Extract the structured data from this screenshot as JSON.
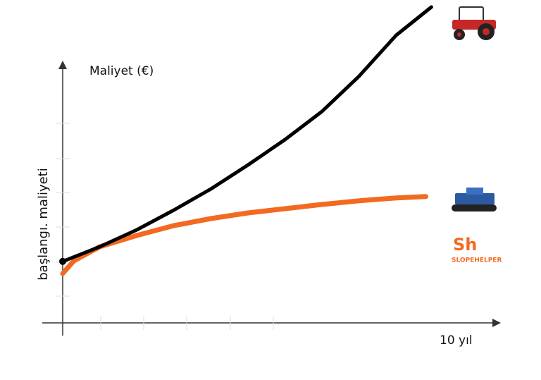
{
  "chart_data": {
    "type": "line",
    "y_label": "Maliyet (€)",
    "side_label": "başlangı. maliyeti",
    "x_label": "10 yıl",
    "logo": {
      "mark": "Sh",
      "name": "SLOPEHELPER"
    },
    "xlim": [
      0,
      10
    ],
    "ylim": [
      0,
      11.2
    ],
    "series": [
      {
        "color": "#000000",
        "x": [
          0,
          1,
          2,
          3,
          4,
          5,
          6,
          7,
          8,
          9,
          9.95
        ],
        "values": [
          2.18,
          2.7,
          3.3,
          4.0,
          4.75,
          5.6,
          6.5,
          7.5,
          8.75,
          10.2,
          11.2
        ]
      },
      {
        "color": "#f26a21",
        "x": [
          0,
          0.3,
          1,
          2,
          3,
          4,
          5,
          6,
          7,
          8,
          9,
          9.8
        ],
        "values": [
          1.75,
          2.2,
          2.7,
          3.1,
          3.45,
          3.7,
          3.9,
          4.05,
          4.2,
          4.33,
          4.43,
          4.48
        ]
      }
    ]
  }
}
